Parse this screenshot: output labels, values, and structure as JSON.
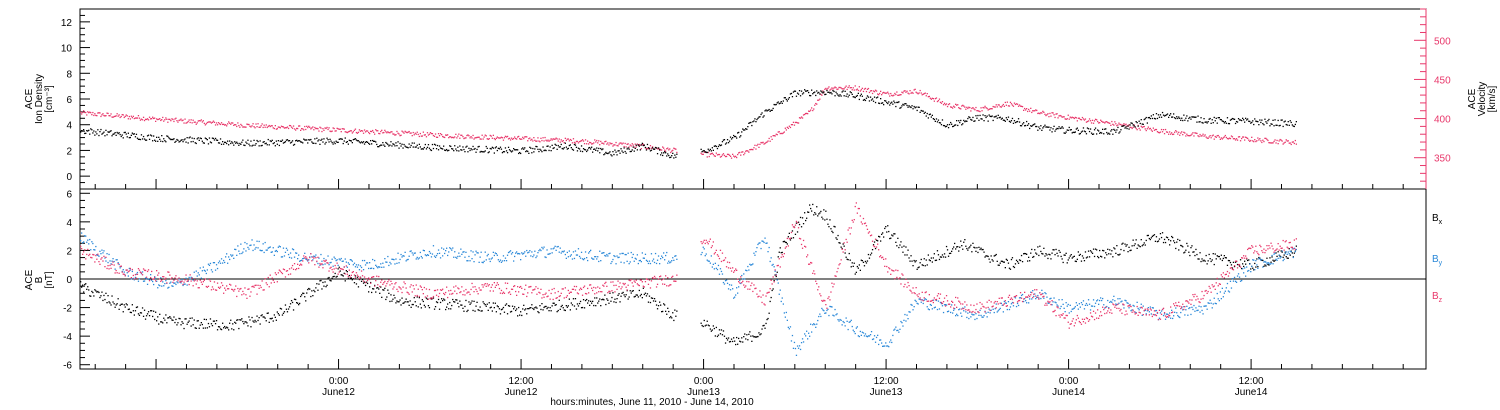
{
  "figure": {
    "xlabel": "hours:minutes, June 11, 2010 - June 14, 2010",
    "x_start": "2010-06-11 07:00",
    "x_end": "2010-06-14 23:30",
    "date_labels": [
      {
        "time": "2010-06-12 00:00",
        "hour": "0:00",
        "day": "June12"
      },
      {
        "time": "2010-06-12 12:00",
        "hour": "12:00",
        "day": "June12"
      },
      {
        "time": "2010-06-13 00:00",
        "hour": "0:00",
        "day": "June13"
      },
      {
        "time": "2010-06-13 12:00",
        "hour": "12:00",
        "day": "June13"
      },
      {
        "time": "2010-06-14 00:00",
        "hour": "0:00",
        "day": "June14"
      },
      {
        "time": "2010-06-14 12:00",
        "hour": "12:00",
        "day": "June14"
      }
    ]
  },
  "colors": {
    "black": "#000000",
    "pink": "#e8386b",
    "blue": "#2a88d8"
  },
  "chart_data": [
    {
      "type": "scatter",
      "panel": "top",
      "ylabel_lines": [
        "ACE",
        "Ion Density",
        "[cm⁻³]"
      ],
      "ylim": [
        -1,
        13
      ],
      "yticks": [
        0,
        2,
        4,
        6,
        8,
        10,
        12
      ],
      "y2label_lines": [
        "ACE",
        "Velocity",
        "[km/s]"
      ],
      "y2lim": [
        310,
        540
      ],
      "y2ticks": [
        350,
        400,
        450,
        500
      ],
      "series": [
        {
          "axis": "left",
          "color": "black",
          "points": [
            [
              "2010-06-11 07:00",
              3.6
            ],
            [
              "2010-06-11 12:00",
              3.0
            ],
            [
              "2010-06-11 18:00",
              2.6
            ],
            [
              "2010-06-12 00:00",
              2.8
            ],
            [
              "2010-06-12 06:00",
              2.3
            ],
            [
              "2010-06-12 12:00",
              2.0
            ],
            [
              "2010-06-12 15:00",
              2.4
            ],
            [
              "2010-06-12 18:00",
              1.8
            ],
            [
              "2010-06-12 20:00",
              2.4
            ],
            [
              "2010-06-12 22:00",
              1.6
            ],
            [
              "2010-06-13 00:00",
              2.0
            ],
            [
              "2010-06-13 02:00",
              3.0
            ],
            [
              "2010-06-13 04:00",
              5.0
            ],
            [
              "2010-06-13 06:00",
              6.5
            ],
            [
              "2010-06-13 08:00",
              6.6
            ],
            [
              "2010-06-13 10:00",
              6.3
            ],
            [
              "2010-06-13 12:00",
              5.8
            ],
            [
              "2010-06-13 14:00",
              5.3
            ],
            [
              "2010-06-13 16:00",
              4.0
            ],
            [
              "2010-06-13 18:00",
              4.6
            ],
            [
              "2010-06-13 20:00",
              4.5
            ],
            [
              "2010-06-13 22:00",
              3.8
            ],
            [
              "2010-06-14 00:00",
              3.6
            ],
            [
              "2010-06-14 03:00",
              3.5
            ],
            [
              "2010-06-14 06:00",
              4.8
            ],
            [
              "2010-06-14 09:00",
              4.4
            ],
            [
              "2010-06-14 12:00",
              4.3
            ],
            [
              "2010-06-14 15:00",
              4.1
            ]
          ]
        },
        {
          "axis": "right",
          "color": "pink",
          "points": [
            [
              "2010-06-11 07:00",
              408
            ],
            [
              "2010-06-11 12:00",
              400
            ],
            [
              "2010-06-11 18:00",
              392
            ],
            [
              "2010-06-12 00:00",
              386
            ],
            [
              "2010-06-12 06:00",
              380
            ],
            [
              "2010-06-12 12:00",
              375
            ],
            [
              "2010-06-12 16:00",
              372
            ],
            [
              "2010-06-12 20:00",
              365
            ],
            [
              "2010-06-12 22:00",
              360
            ],
            [
              "2010-06-13 00:00",
              355
            ],
            [
              "2010-06-13 02:00",
              352
            ],
            [
              "2010-06-13 04:00",
              370
            ],
            [
              "2010-06-13 06:00",
              395
            ],
            [
              "2010-06-13 07:00",
              410
            ],
            [
              "2010-06-13 08:00",
              440
            ],
            [
              "2010-06-13 10:00",
              440
            ],
            [
              "2010-06-13 12:00",
              432
            ],
            [
              "2010-06-13 14:00",
              436
            ],
            [
              "2010-06-13 16:00",
              418
            ],
            [
              "2010-06-13 18:00",
              412
            ],
            [
              "2010-06-13 20:00",
              420
            ],
            [
              "2010-06-13 22:00",
              408
            ],
            [
              "2010-06-14 00:00",
              402
            ],
            [
              "2010-06-14 03:00",
              394
            ],
            [
              "2010-06-14 06:00",
              385
            ],
            [
              "2010-06-14 09:00",
              378
            ],
            [
              "2010-06-14 12:00",
              374
            ],
            [
              "2010-06-14 15:00",
              370
            ]
          ]
        }
      ]
    },
    {
      "type": "scatter",
      "panel": "bottom",
      "ylabel_lines": [
        "ACE",
        "B",
        "[nT]"
      ],
      "ylim": [
        -6.3,
        6.3
      ],
      "yticks": [
        -6,
        -4,
        -2,
        0,
        2,
        4,
        6
      ],
      "legend_placement": "right",
      "series": [
        {
          "name": "Bx",
          "color": "black",
          "points": [
            [
              "2010-06-11 07:00",
              -0.5
            ],
            [
              "2010-06-11 10:00",
              -2.0
            ],
            [
              "2010-06-11 13:00",
              -3.0
            ],
            [
              "2010-06-11 17:00",
              -3.2
            ],
            [
              "2010-06-11 20:00",
              -2.5
            ],
            [
              "2010-06-12 00:00",
              0.5
            ],
            [
              "2010-06-12 04:00",
              -1.5
            ],
            [
              "2010-06-12 08:00",
              -1.8
            ],
            [
              "2010-06-12 12:00",
              -2.2
            ],
            [
              "2010-06-12 16:00",
              -1.6
            ],
            [
              "2010-06-12 20:00",
              -1.0
            ],
            [
              "2010-06-12 22:00",
              -2.5
            ],
            [
              "2010-06-13 00:00",
              -3.0
            ],
            [
              "2010-06-13 02:00",
              -4.5
            ],
            [
              "2010-06-13 04:00",
              -3.5
            ],
            [
              "2010-06-13 05:00",
              2.0
            ],
            [
              "2010-06-13 07:00",
              5.0
            ],
            [
              "2010-06-13 08:00",
              4.5
            ],
            [
              "2010-06-13 10:00",
              0.5
            ],
            [
              "2010-06-13 12:00",
              3.5
            ],
            [
              "2010-06-13 14:00",
              1.0
            ],
            [
              "2010-06-13 17:00",
              2.5
            ],
            [
              "2010-06-13 20:00",
              1.0
            ],
            [
              "2010-06-13 22:00",
              2.0
            ],
            [
              "2010-06-14 00:00",
              1.5
            ],
            [
              "2010-06-14 03:00",
              2.0
            ],
            [
              "2010-06-14 06:00",
              3.0
            ],
            [
              "2010-06-14 09:00",
              1.5
            ],
            [
              "2010-06-14 12:00",
              1.0
            ],
            [
              "2010-06-14 15:00",
              2.0
            ]
          ]
        },
        {
          "name": "By",
          "color": "blue",
          "points": [
            [
              "2010-06-11 07:00",
              3.0
            ],
            [
              "2010-06-11 10:00",
              0.5
            ],
            [
              "2010-06-11 13:00",
              -0.5
            ],
            [
              "2010-06-11 16:00",
              1.0
            ],
            [
              "2010-06-11 18:00",
              2.5
            ],
            [
              "2010-06-11 22:00",
              1.5
            ],
            [
              "2010-06-12 02:00",
              1.0
            ],
            [
              "2010-06-12 06:00",
              2.0
            ],
            [
              "2010-06-12 10:00",
              1.5
            ],
            [
              "2010-06-12 14:00",
              2.0
            ],
            [
              "2010-06-12 18:00",
              1.5
            ],
            [
              "2010-06-12 22:00",
              1.5
            ],
            [
              "2010-06-13 00:00",
              2.0
            ],
            [
              "2010-06-13 02:00",
              -1.0
            ],
            [
              "2010-06-13 04:00",
              3.0
            ],
            [
              "2010-06-13 06:00",
              -5.0
            ],
            [
              "2010-06-13 08:00",
              -2.0
            ],
            [
              "2010-06-13 10:00",
              -3.5
            ],
            [
              "2010-06-13 12:00",
              -4.5
            ],
            [
              "2010-06-13 14:00",
              -1.5
            ],
            [
              "2010-06-13 18:00",
              -2.5
            ],
            [
              "2010-06-13 22:00",
              -1.0
            ],
            [
              "2010-06-14 00:00",
              -2.0
            ],
            [
              "2010-06-14 03:00",
              -1.5
            ],
            [
              "2010-06-14 06:00",
              -2.5
            ],
            [
              "2010-06-14 09:00",
              -2.0
            ],
            [
              "2010-06-14 12:00",
              1.0
            ],
            [
              "2010-06-14 15:00",
              2.0
            ]
          ]
        },
        {
          "name": "Bz",
          "color": "pink",
          "points": [
            [
              "2010-06-11 07:00",
              2.0
            ],
            [
              "2010-06-11 10:00",
              0.5
            ],
            [
              "2010-06-11 14:00",
              0.0
            ],
            [
              "2010-06-11 18:00",
              -1.0
            ],
            [
              "2010-06-11 22:00",
              1.5
            ],
            [
              "2010-06-12 02:00",
              0.0
            ],
            [
              "2010-06-12 06:00",
              -1.0
            ],
            [
              "2010-06-12 10:00",
              -0.5
            ],
            [
              "2010-06-12 14:00",
              -1.0
            ],
            [
              "2010-06-12 18:00",
              -0.5
            ],
            [
              "2010-06-12 22:00",
              0.0
            ],
            [
              "2010-06-13 00:00",
              3.0
            ],
            [
              "2010-06-13 02:00",
              0.5
            ],
            [
              "2010-06-13 04:00",
              -1.5
            ],
            [
              "2010-06-13 06:00",
              4.0
            ],
            [
              "2010-06-13 08:00",
              -2.0
            ],
            [
              "2010-06-13 10:00",
              5.0
            ],
            [
              "2010-06-13 12:00",
              1.0
            ],
            [
              "2010-06-13 14:00",
              -1.0
            ],
            [
              "2010-06-13 18:00",
              -2.0
            ],
            [
              "2010-06-13 22:00",
              -1.0
            ],
            [
              "2010-06-14 00:00",
              -3.0
            ],
            [
              "2010-06-14 03:00",
              -2.0
            ],
            [
              "2010-06-14 06:00",
              -2.5
            ],
            [
              "2010-06-14 09:00",
              -1.0
            ],
            [
              "2010-06-14 12:00",
              2.0
            ],
            [
              "2010-06-14 15:00",
              2.5
            ]
          ]
        }
      ]
    }
  ]
}
